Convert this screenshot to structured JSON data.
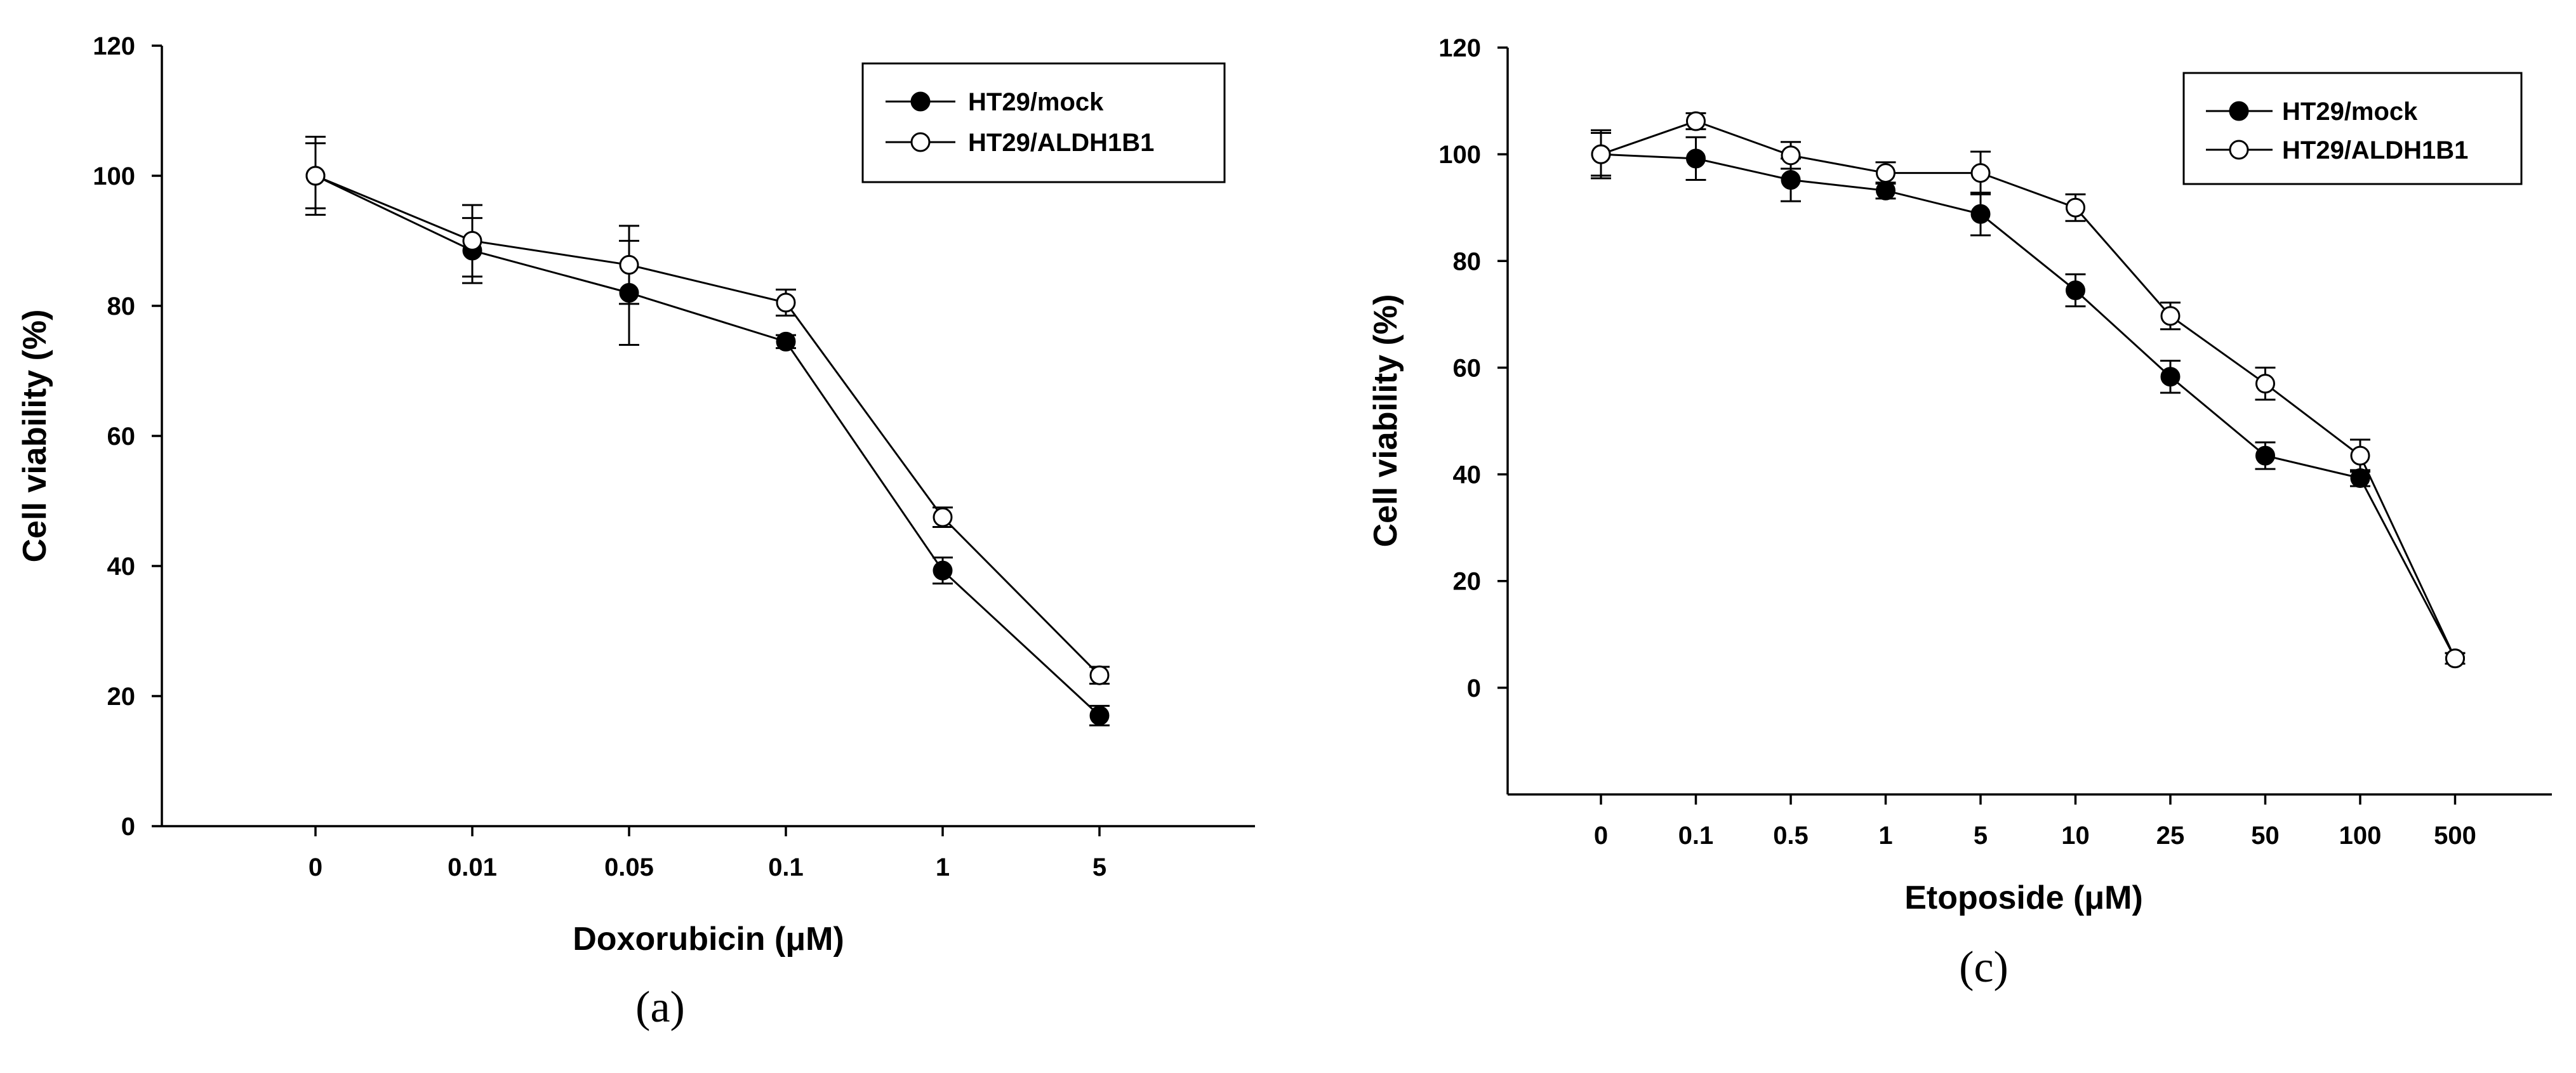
{
  "chart_data": [
    {
      "type": "line",
      "panel": "(a)",
      "xlabel": "Doxorubicin (μM)",
      "ylabel": "Cell viability (%)",
      "categories": [
        "0",
        "0.01",
        "0.05",
        "0.1",
        "1",
        "5"
      ],
      "ylim": [
        0,
        120
      ],
      "yticks": [
        0,
        20,
        40,
        60,
        80,
        100,
        120
      ],
      "legend_position": "top-right",
      "series": [
        {
          "name": "HT29/mock",
          "marker": "filled-circle",
          "values": [
            100,
            88.5,
            82,
            74.5,
            39.3,
            17
          ],
          "errors": [
            6,
            5,
            8,
            1,
            2,
            1.5
          ]
        },
        {
          "name": "HT29/ALDH1B1",
          "marker": "open-circle",
          "values": [
            100,
            90,
            86.3,
            80.5,
            47.5,
            23.2
          ],
          "errors": [
            5,
            5.5,
            6,
            2,
            1.5,
            1.3
          ]
        }
      ]
    },
    {
      "type": "line",
      "panel": "(c)",
      "xlabel": "Etoposide (μM)",
      "ylabel": "Cell viability (%)",
      "categories": [
        "0",
        "0.1",
        "0.5",
        "1",
        "5",
        "10",
        "25",
        "50",
        "100",
        "500"
      ],
      "ylim": [
        -20,
        120
      ],
      "yticks": [
        0,
        20,
        40,
        60,
        80,
        100,
        120
      ],
      "legend_position": "top-right",
      "series": [
        {
          "name": "HT29/mock",
          "marker": "filled-circle",
          "values": [
            100,
            99.2,
            95.2,
            93.2,
            88.8,
            74.5,
            58.3,
            43.5,
            39.3,
            5.5
          ],
          "errors": [
            4,
            4,
            4,
            1.5,
            4,
            3,
            3,
            2.5,
            1.5,
            1
          ]
        },
        {
          "name": "HT29/ALDH1B1",
          "marker": "open-circle",
          "values": [
            100,
            106.2,
            99.8,
            96.5,
            96.5,
            90,
            69.7,
            57,
            43.5,
            5.5
          ],
          "errors": [
            4.5,
            1.5,
            2.5,
            2,
            4,
            2.5,
            2.5,
            3,
            3,
            1
          ]
        }
      ]
    }
  ]
}
